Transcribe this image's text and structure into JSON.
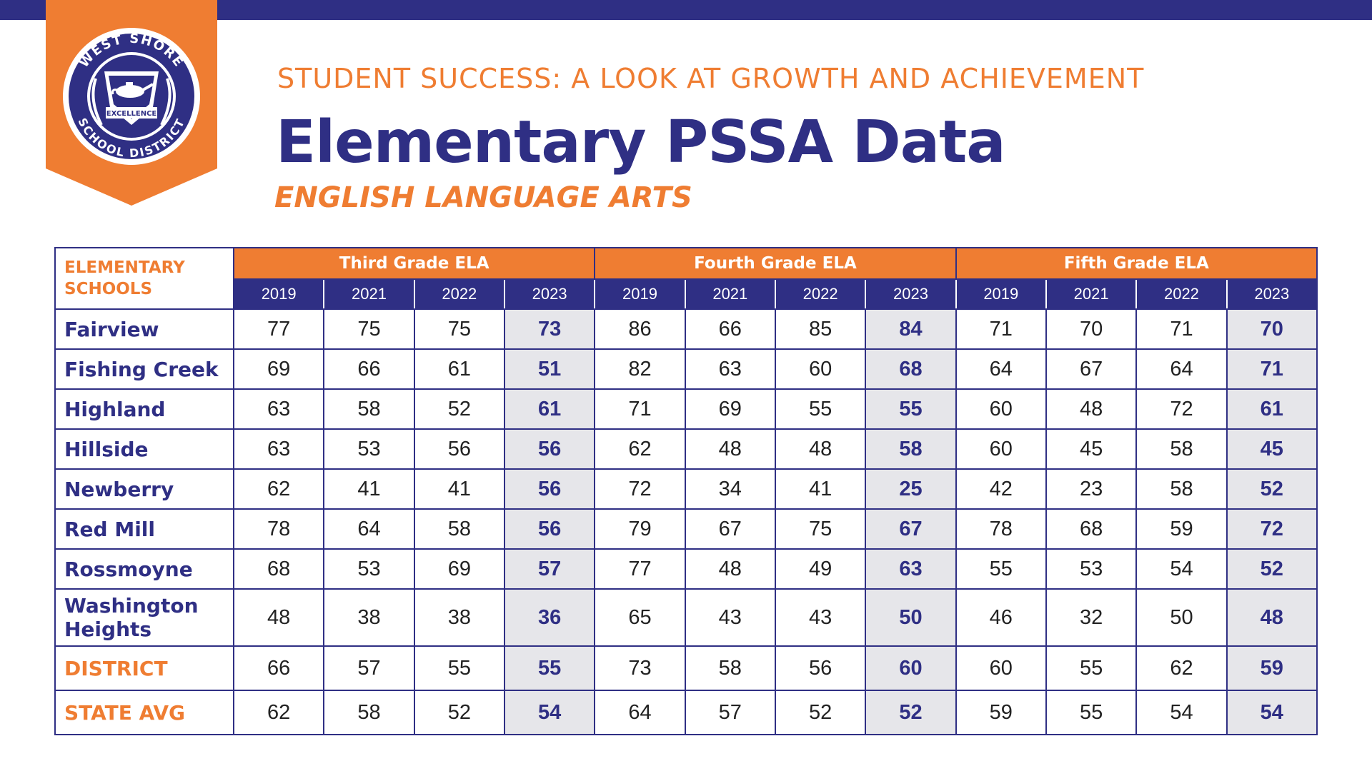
{
  "branding": {
    "logo_top_text": "WEST SHORE",
    "logo_bottom_text": "SCHOOL DISTRICT",
    "logo_ribbon_text": "EXCELLENCE",
    "colors": {
      "navy": "#2f2f84",
      "orange": "#ef7d32",
      "highlight": "#e6e6ea"
    }
  },
  "header": {
    "subtitle": "STUDENT SUCCESS: A LOOK AT GROWTH AND ACHIEVEMENT",
    "title": "Elementary PSSA Data",
    "subject": "ENGLISH LANGUAGE ARTS"
  },
  "table": {
    "corner_label_line1": "ELEMENTARY",
    "corner_label_line2": "SCHOOLS",
    "groups": [
      "Third Grade ELA",
      "Fourth Grade ELA",
      "Fifth Grade ELA"
    ],
    "years": [
      "2019",
      "2021",
      "2022",
      "2023"
    ],
    "rows": [
      {
        "name": "Fairview",
        "values": [
          "77",
          "75",
          "75",
          "73",
          "86",
          "66",
          "85",
          "84",
          "71",
          "70",
          "71",
          "70"
        ]
      },
      {
        "name": "Fishing Creek",
        "values": [
          "69",
          "66",
          "61",
          "51",
          "82",
          "63",
          "60",
          "68",
          "64",
          "67",
          "64",
          "71"
        ]
      },
      {
        "name": "Highland",
        "values": [
          "63",
          "58",
          "52",
          "61",
          "71",
          "69",
          "55",
          "55",
          "60",
          "48",
          "72",
          "61"
        ]
      },
      {
        "name": "Hillside",
        "values": [
          "63",
          "53",
          "56",
          "56",
          "62",
          "48",
          "48",
          "58",
          "60",
          "45",
          "58",
          "45"
        ]
      },
      {
        "name": "Newberry",
        "values": [
          "62",
          "41",
          "41",
          "56",
          "72",
          "34",
          "41",
          "25",
          "42",
          "23",
          "58",
          "52"
        ]
      },
      {
        "name": "Red Mill",
        "values": [
          "78",
          "64",
          "58",
          "56",
          "79",
          "67",
          "75",
          "67",
          "78",
          "68",
          "59",
          "72"
        ]
      },
      {
        "name": "Rossmoyne",
        "values": [
          "68",
          "53",
          "69",
          "57",
          "77",
          "48",
          "49",
          "63",
          "55",
          "53",
          "54",
          "52"
        ]
      },
      {
        "name_line1": "Washington",
        "name_line2": "Heights",
        "values": [
          "48",
          "38",
          "38",
          "36",
          "65",
          "43",
          "43",
          "50",
          "46",
          "32",
          "50",
          "48"
        ]
      },
      {
        "name": "DISTRICT",
        "values": [
          "66",
          "57",
          "55",
          "55",
          "73",
          "58",
          "56",
          "60",
          "60",
          "55",
          "62",
          "59"
        ]
      },
      {
        "name": "STATE AVG",
        "values": [
          "62",
          "58",
          "52",
          "54",
          "64",
          "57",
          "52",
          "52",
          "59",
          "55",
          "54",
          "54"
        ]
      }
    ]
  }
}
